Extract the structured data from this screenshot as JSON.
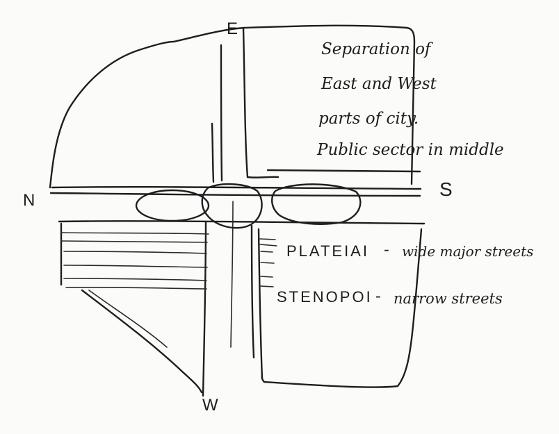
{
  "compass": {
    "north": "N",
    "south": "S",
    "east": "E",
    "west": "W"
  },
  "notes": {
    "line1": "Separation of",
    "line2": "East and West",
    "line3": "parts of city.",
    "line4": "Public sector in middle"
  },
  "legend": {
    "plateiai_term": "PLATEIAI",
    "plateiai_separator": "-",
    "plateiai_desc": "wide major streets",
    "stenopoi_term": "STENOPOI",
    "stenopoi_separator": "-",
    "stenopoi_desc": "narrow streets"
  },
  "colors": {
    "ink": "#1e1e1e",
    "paper": "#fbfbf9"
  }
}
